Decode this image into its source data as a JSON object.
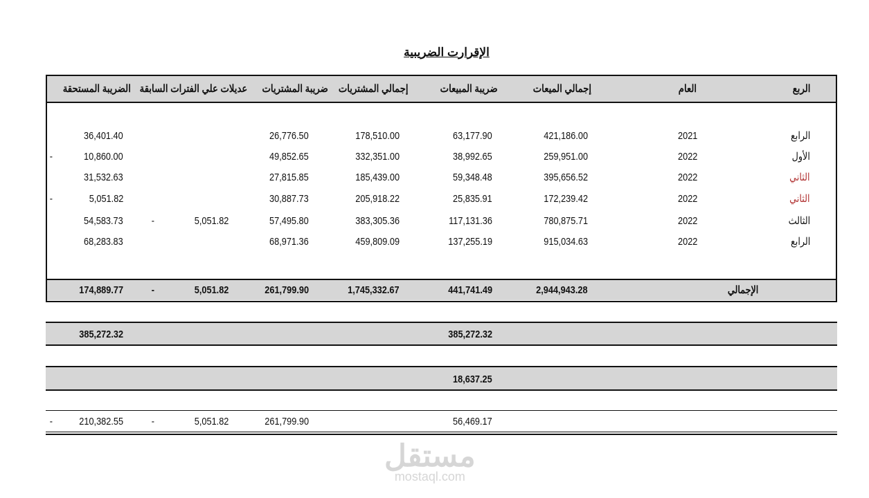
{
  "title": "الإقرارت الضريبية",
  "headers": [
    "الربع",
    "العام",
    "إجمالي الميعات",
    "ضريبة المبيعات",
    "إجمالي المشتريات",
    "ضريبة المشتريات",
    "عديلات علي الفترات السابقة",
    "الضريبة المستحقة"
  ],
  "rows": [
    {
      "quarter": "الرابع",
      "quarter_color": "#111111",
      "year": "2021",
      "sales_total": "421,186.00",
      "sales_tax": "63,177.90",
      "purchases_total": "178,510.00",
      "purchases_tax": "26,776.50",
      "adj_value": "",
      "adj_dash": "",
      "due": "36,401.40",
      "due_dash": ""
    },
    {
      "quarter": "الأول",
      "quarter_color": "#111111",
      "year": "2022",
      "sales_total": "259,951.00",
      "sales_tax": "38,992.65",
      "purchases_total": "332,351.00",
      "purchases_tax": "49,852.65",
      "adj_value": "",
      "adj_dash": "",
      "due": "10,860.00",
      "due_dash": "-"
    },
    {
      "quarter": "الثاني",
      "quarter_color": "#b03030",
      "year": "2022",
      "sales_total": "395,656.52",
      "sales_tax": "59,348.48",
      "purchases_total": "185,439.00",
      "purchases_tax": "27,815.85",
      "adj_value": "",
      "adj_dash": "",
      "due": "31,532.63",
      "due_dash": ""
    },
    {
      "quarter": "الثاني",
      "quarter_color": "#b03030",
      "year": "2022",
      "sales_total": "172,239.42",
      "sales_tax": "25,835.91",
      "purchases_total": "205,918.22",
      "purchases_tax": "30,887.73",
      "adj_value": "",
      "adj_dash": "",
      "due": "5,051.82",
      "due_dash": "-"
    },
    {
      "quarter": "الثالث",
      "quarter_color": "#111111",
      "year": "2022",
      "sales_total": "780,875.71",
      "sales_tax": "117,131.36",
      "purchases_total": "383,305.36",
      "purchases_tax": "57,495.80",
      "adj_value": "5,051.82",
      "adj_dash": "-",
      "due": "54,583.73",
      "due_dash": ""
    },
    {
      "quarter": "الرابع",
      "quarter_color": "#111111",
      "year": "2022",
      "sales_total": "915,034.63",
      "sales_tax": "137,255.19",
      "purchases_total": "459,809.09",
      "purchases_tax": "68,971.36",
      "adj_value": "",
      "adj_dash": "",
      "due": "68,283.83",
      "due_dash": ""
    }
  ],
  "totals": {
    "label": "الإجمالي",
    "sales_total": "2,944,943.28",
    "sales_tax": "441,741.49",
    "purchases_total": "1,745,332.67",
    "purchases_tax": "261,799.90",
    "adj_value": "5,051.82",
    "adj_dash": "-",
    "due": "174,889.77"
  },
  "summary1": {
    "sales_tax": "385,272.32",
    "due": "385,272.32"
  },
  "summary2": {
    "sales_tax": "18,637.25"
  },
  "summary3": {
    "sales_tax": "56,469.17",
    "purchases_tax": "261,799.90",
    "adj_value": "5,051.82",
    "adj_dash": "-",
    "due": "210,382.55",
    "due_dash": "-"
  },
  "watermark": {
    "arabic": "مستقل",
    "latin": "mostaql.com"
  }
}
